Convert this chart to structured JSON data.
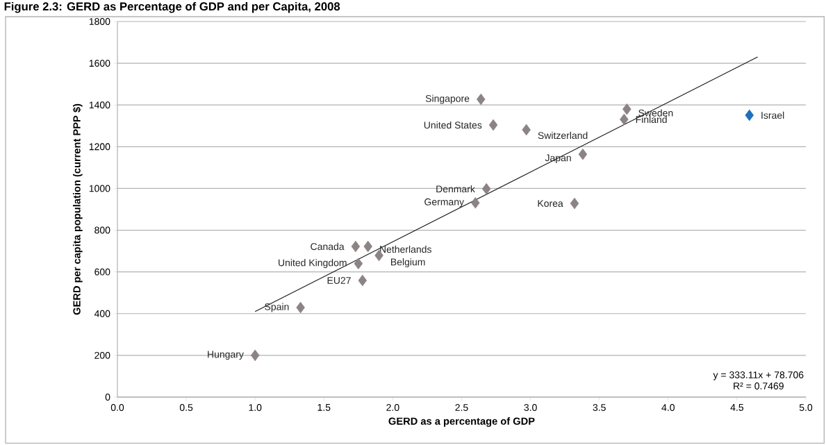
{
  "chart_data": {
    "type": "scatter",
    "title": "Figure 2.3: GERD as Percentage of GDP and per Capita, 2008",
    "xlabel": "GERD as a percentage of GDP",
    "ylabel": "GERD per capita population (current PPP $)",
    "series": [
      {
        "marker": "diamond",
        "color": "#8c8484",
        "x": [
          1.0,
          1.33,
          1.78,
          1.75,
          1.73,
          1.82,
          1.9,
          2.6,
          2.68,
          2.64,
          2.73,
          2.97,
          3.38,
          3.32,
          3.7,
          3.68
        ],
        "values": [
          200,
          429,
          559,
          640,
          722,
          722,
          679,
          931,
          998,
          1427,
          1304,
          1281,
          1164,
          928,
          1380,
          1331
        ]
      },
      {
        "marker": "diamond",
        "color": "#1f6fbf",
        "x": [
          4.59
        ],
        "values": [
          1351
        ]
      },
      {
        "type": "line",
        "color": "#1a1a1a",
        "x": [
          1.0,
          4.65
        ],
        "values": [
          410,
          1630
        ]
      }
    ],
    "grid": "y",
    "xlim": [
      0,
      5
    ],
    "ylim": [
      0,
      1800
    ],
    "xticks": [
      {
        "value": 0,
        "label": "0.0"
      },
      {
        "value": 0.5,
        "label": "0.5"
      },
      {
        "value": 1,
        "label": "1.0"
      },
      {
        "value": 1.5,
        "label": "1.5"
      },
      {
        "value": 2,
        "label": "2.0"
      },
      {
        "value": 2.5,
        "label": "2.5"
      },
      {
        "value": 3,
        "label": "3.0"
      },
      {
        "value": 3.5,
        "label": "3.5"
      },
      {
        "value": 4,
        "label": "4.0"
      },
      {
        "value": 4.5,
        "label": "4.5"
      },
      {
        "value": 5,
        "label": "5.0"
      }
    ],
    "yticks": [
      0,
      200,
      400,
      600,
      800,
      1000,
      1200,
      1400,
      1600,
      1800
    ],
    "annotations": [
      {
        "text": "Hungary",
        "x": 1.0,
        "y": 200
      },
      {
        "text": "Spain",
        "x": 1.33,
        "y": 429
      },
      {
        "text": "EU27",
        "x": 1.78,
        "y": 559
      },
      {
        "text": "United Kingdom",
        "x": 1.75,
        "y": 640
      },
      {
        "text": "Canada",
        "x": 1.73,
        "y": 722
      },
      {
        "text": "Netherlands",
        "x": 1.82,
        "y": 722
      },
      {
        "text": "Belgium",
        "x": 1.9,
        "y": 679
      },
      {
        "text": "Germany",
        "x": 2.6,
        "y": 931
      },
      {
        "text": "Denmark",
        "x": 2.68,
        "y": 998
      },
      {
        "text": "Singapore",
        "x": 2.64,
        "y": 1427
      },
      {
        "text": "United States",
        "x": 2.73,
        "y": 1304
      },
      {
        "text": "Switzerland",
        "x": 2.97,
        "y": 1281
      },
      {
        "text": "Japan",
        "x": 3.38,
        "y": 1164
      },
      {
        "text": "Korea",
        "x": 3.32,
        "y": 928
      },
      {
        "text": "Sweden",
        "x": 3.7,
        "y": 1380
      },
      {
        "text": "Finland",
        "x": 3.68,
        "y": 1331
      },
      {
        "text": "Israel",
        "x": 4.59,
        "y": 1351
      },
      "y = 333.11x + 78.706",
      "R² = 0.7469"
    ]
  }
}
